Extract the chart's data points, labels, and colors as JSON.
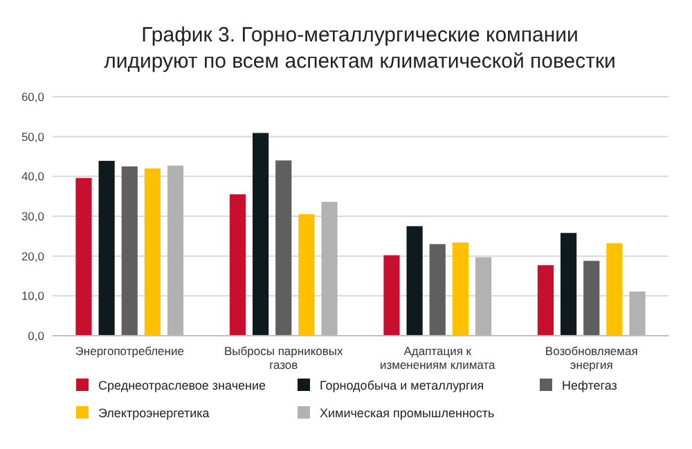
{
  "chart_data": {
    "type": "bar",
    "title": "График 3. Горно-металлургические компании лидируют по всем аспектам климатической повестки",
    "categories": [
      "Энергопотребление",
      "Выбросы парниковых газов",
      "Адаптация к изменениям климата",
      "Возобновляемая энергия"
    ],
    "series": [
      {
        "name": "Среднеотраслевое значение",
        "color": "#c8102e",
        "values": [
          39.6,
          35.5,
          20.2,
          17.7
        ]
      },
      {
        "name": "Горнодобыча и металлургия",
        "color": "#0f1a1e",
        "values": [
          43.9,
          50.9,
          27.5,
          25.8
        ]
      },
      {
        "name": "Нефтегаз",
        "color": "#5f5f5f",
        "values": [
          42.5,
          44.0,
          23.0,
          18.8
        ]
      },
      {
        "name": "Электроэнергетика",
        "color": "#ffc000",
        "values": [
          42.0,
          30.5,
          23.4,
          23.2
        ]
      },
      {
        "name": "Химическая промышленность",
        "color": "#b2b2b2",
        "values": [
          42.7,
          33.6,
          19.7,
          11.1
        ]
      }
    ],
    "ylim": [
      0,
      60
    ],
    "yticks": [
      {
        "value": 0,
        "label": "0,0"
      },
      {
        "value": 10,
        "label": "10,0"
      },
      {
        "value": 20,
        "label": "20,0"
      },
      {
        "value": 30,
        "label": "30,0"
      },
      {
        "value": 40,
        "label": "40,0"
      },
      {
        "value": 50,
        "label": "50,0"
      },
      {
        "value": 60,
        "label": "60,0"
      }
    ],
    "grid": "y",
    "legend": "bottom"
  }
}
